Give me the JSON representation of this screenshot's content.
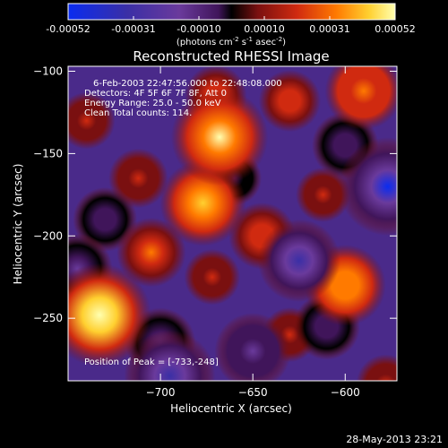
{
  "figure": {
    "colorbar": {
      "ticks": [
        "-0.00052",
        "-0.00031",
        "-0.00010",
        "0.00010",
        "0.00031",
        "0.00052"
      ],
      "unit_parts": {
        "a": "(photons cm",
        "b": "-2",
        "c": " s",
        "d": "-1",
        "e": " asec",
        "f": "-2",
        "g": ")"
      }
    },
    "image_title": "Reconstructed RHESSI Image",
    "info_lines": [
      "6-Feb-2003 22:47:56.000 to 22:48:08.000",
      "Detectors: 4F 5F 6F 7F 8F, Att 0",
      "Energy Range: 25.0 - 50.0 keV",
      "Clean    Total counts: 114."
    ],
    "peak_label": "Position of Peak = [-733,-248]",
    "footer": "28-May-2013 23:21",
    "colors": {
      "background": "#000000",
      "text": "#ffffff"
    }
  },
  "chart_data": {
    "type": "heatmap",
    "title": "Reconstructed RHESSI Image",
    "xlabel": "Heliocentric X (arcsec)",
    "ylabel": "Heliocentric Y (arcsec)",
    "xlim": [
      -750,
      -572
    ],
    "ylim": [
      -288,
      -97
    ],
    "x_ticks": [
      -700,
      -650,
      -600
    ],
    "y_ticks": [
      -100,
      -150,
      -200,
      -250
    ],
    "colorscale": {
      "min": -0.00052,
      "max": 0.00052,
      "stops": [
        "#0a2cf0",
        "#3a2fa6",
        "#6a3a9c",
        "#40155a",
        "#000000",
        "#7a1010",
        "#d02a10",
        "#ff7a00",
        "#ffd030",
        "#ffffb0"
      ]
    },
    "peak_position": [
      -733,
      -248
    ],
    "sources": [
      {
        "x": -733,
        "y": -248,
        "value": 0.00052
      },
      {
        "x": -668,
        "y": -140,
        "value": 0.00047
      },
      {
        "x": -677,
        "y": -180,
        "value": 0.00038
      },
      {
        "x": -590,
        "y": -112,
        "value": 0.00031
      },
      {
        "x": -600,
        "y": -230,
        "value": 0.00034
      },
      {
        "x": -705,
        "y": -210,
        "value": 0.00024
      },
      {
        "x": -645,
        "y": -200,
        "value": 0.00022
      },
      {
        "x": -630,
        "y": -118,
        "value": 0.00018
      },
      {
        "x": -630,
        "y": -260,
        "value": 0.00012
      },
      {
        "x": -672,
        "y": -225,
        "value": 0.00013
      },
      {
        "x": -740,
        "y": -130,
        "value": 0.00014
      },
      {
        "x": -578,
        "y": -290,
        "value": 0.00016
      },
      {
        "x": -670,
        "y": -115,
        "value": 0.00018
      },
      {
        "x": -712,
        "y": -165,
        "value": 0.00016
      },
      {
        "x": -612,
        "y": -175,
        "value": 0.00012
      },
      {
        "x": -730,
        "y": -190,
        "value": -0.0002
      },
      {
        "x": -625,
        "y": -215,
        "value": -0.00035
      },
      {
        "x": -650,
        "y": -270,
        "value": -0.0003
      },
      {
        "x": -700,
        "y": -265,
        "value": -0.00025
      },
      {
        "x": -695,
        "y": -285,
        "value": -0.00042
      },
      {
        "x": -600,
        "y": -145,
        "value": -0.00022
      },
      {
        "x": -577,
        "y": -170,
        "value": -0.00048
      },
      {
        "x": -610,
        "y": -255,
        "value": -0.00022
      },
      {
        "x": -660,
        "y": -165,
        "value": -0.00012
      },
      {
        "x": -745,
        "y": -220,
        "value": -0.00025
      }
    ]
  }
}
